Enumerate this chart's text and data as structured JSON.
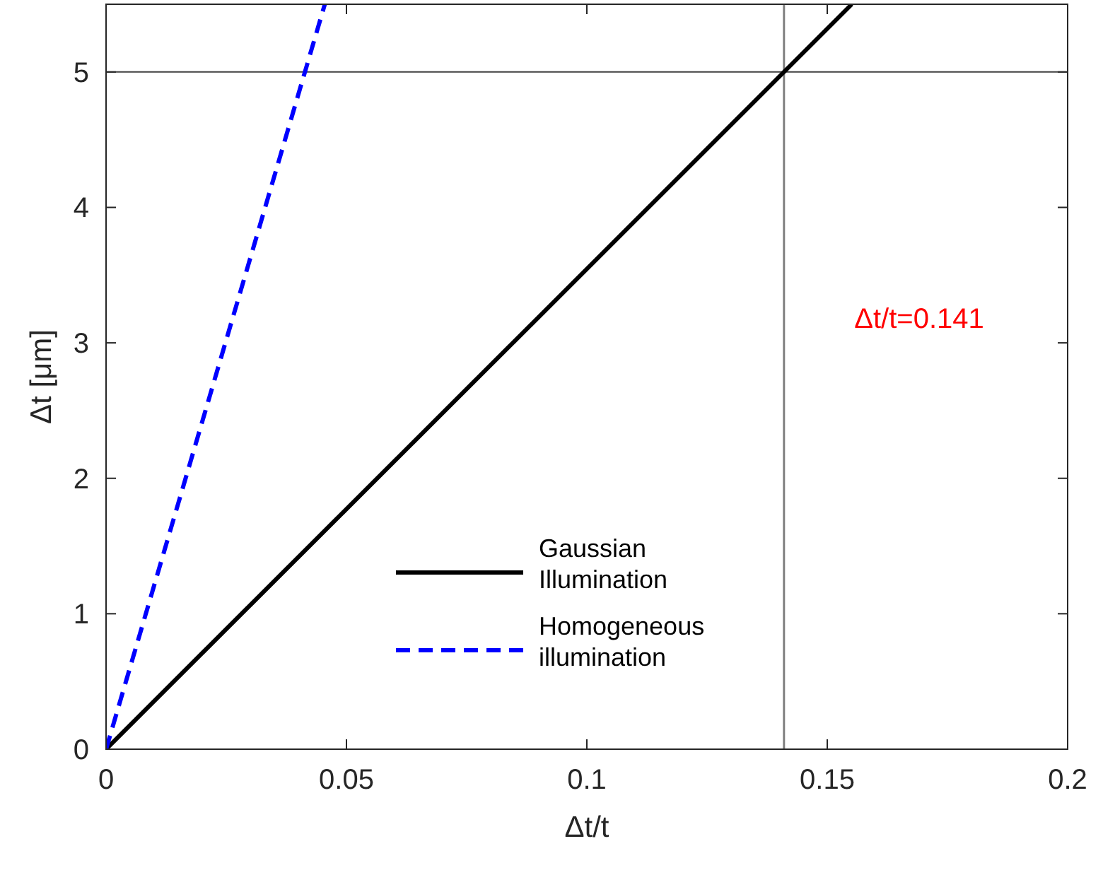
{
  "chart_data": {
    "type": "line",
    "xlabel": "Δt/t",
    "ylabel": "Δt [μm]",
    "xlim": [
      0,
      0.2
    ],
    "ylim": [
      0,
      5.5
    ],
    "xticks": [
      0,
      0.05,
      0.1,
      0.15,
      0.2
    ],
    "yticks": [
      0,
      1,
      2,
      3,
      4,
      5
    ],
    "series": [
      {
        "name": "Gaussian Illumination",
        "color": "#000000",
        "x": [
          0,
          0.1551
        ],
        "values": [
          0,
          5.5
        ],
        "line_style": "solid"
      },
      {
        "name": "Homogeneous illumination",
        "color": "#0000ff",
        "x": [
          0,
          0.0455
        ],
        "values": [
          0,
          5.5
        ],
        "line_style": "dashed"
      }
    ],
    "ref_lines": [
      {
        "axis": "x",
        "value": 0.141,
        "color": "#808080"
      },
      {
        "axis": "y",
        "value": 5,
        "color": "#404040"
      }
    ],
    "annotations": [
      "Δt/t=0.141"
    ],
    "legend": "bottom",
    "grid": false,
    "marker": "none"
  }
}
